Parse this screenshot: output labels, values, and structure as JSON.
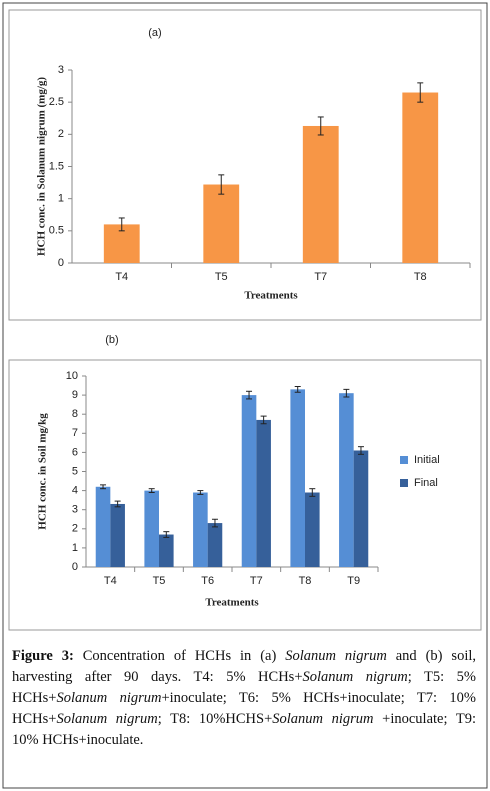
{
  "chart_data": [
    {
      "type": "bar",
      "title": "(a)",
      "y_label": "HCH conc. in Solanum nigrum (mg/g)",
      "x_label": "Treatments",
      "categories": [
        "T4",
        "T5",
        "T7",
        "T8"
      ],
      "series": [
        {
          "name": null,
          "color": "#f79646",
          "values": [
            0.6,
            1.22,
            2.13,
            2.65
          ],
          "errors": [
            0.1,
            0.15,
            0.14,
            0.15
          ]
        }
      ],
      "ylim": [
        0,
        3
      ],
      "yticks": [
        0,
        0.5,
        1,
        1.5,
        2,
        2.5,
        3
      ],
      "grid": false,
      "legend": null
    },
    {
      "type": "bar",
      "title": "(b)",
      "y_label": "HCH conc. in Soil mg/kg",
      "x_label": "Treatments",
      "categories": [
        "T4",
        "T5",
        "T6",
        "T7",
        "T8",
        "T9"
      ],
      "series": [
        {
          "name": "Initial",
          "color": "#558ed5",
          "values": [
            4.2,
            4.0,
            3.9,
            9.0,
            9.3,
            9.1
          ],
          "errors": [
            0.1,
            0.1,
            0.1,
            0.2,
            0.15,
            0.2
          ]
        },
        {
          "name": "Final",
          "color": "#36609a",
          "values": [
            3.3,
            1.7,
            2.3,
            7.7,
            3.9,
            6.1
          ],
          "errors": [
            0.15,
            0.15,
            0.2,
            0.2,
            0.2,
            0.2
          ]
        }
      ],
      "ylim": [
        0,
        10
      ],
      "yticks": [
        0,
        1,
        2,
        3,
        4,
        5,
        6,
        7,
        8,
        9,
        10
      ],
      "grid": false,
      "legend": "right"
    }
  ],
  "caption": [
    "Figure 3:",
    " Concentration of HCHs in (a) ",
    "Solanum nigrum",
    " and (b) soil, harvesting after 90 days. T4: 5% HCHs+",
    "Solanum nigrum",
    "; T5: 5% HCHs+",
    "Solanum nigrum",
    "+inoculate; T6: 5% HCHs+inoculate; T7: 10% HCHs+",
    "Solanum nigrum",
    "; T8: 10%HCHS+",
    "Solanum nigrum",
    " +inoculate; T9: 10% HCHs+inoculate."
  ]
}
